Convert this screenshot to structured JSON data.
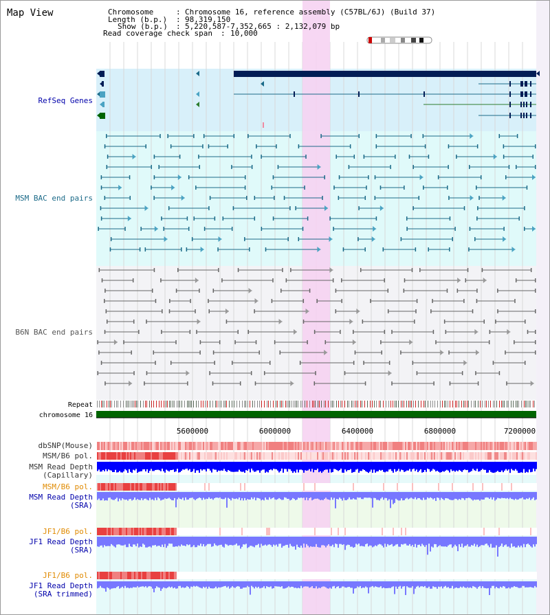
{
  "title": "Map View",
  "header": {
    "chromosome_label": "Chromosome",
    "chromosome_value": "Chromosome 16, reference assembly (C57BL/6J) (Build 37)",
    "length_label": "Length (b.p.)",
    "length_value": "98,319,150",
    "show_label": "Show (b.p.)",
    "show_value": "5,220,587-7,352,665 : 2,132,079 bp",
    "coverage_label": "Read coverage check span",
    "coverage_value": "10,000"
  },
  "tracks": {
    "refseq": "RefSeq Genes",
    "msm_bac": "MSM BAC end pairs",
    "b6n_bac": "B6N BAC end pairs",
    "repeat": "Repeat",
    "chromosome": "chromosome 16",
    "dbsnp": "dbSNP(Mouse)",
    "msm_pol": "MSM/B6 pol.",
    "msm_depth_cap_1": "MSM Read Depth",
    "msm_depth_cap_2": "(Capillary)",
    "msm_pol_sra": "MSM/B6 pol.",
    "msm_depth_sra_1": "MSM Read Depth",
    "msm_depth_sra_2": "(SRA)",
    "jf1_pol": "JF1/B6 pol.",
    "jf1_depth_1": "JF1 Read Depth",
    "jf1_depth_2": "(SRA)",
    "jf1_pol_trim": "JF1/B6 pol.",
    "jf1_trim_1": "JF1 Read Depth",
    "jf1_trim_2": "(SRA trimmed)"
  },
  "axis": {
    "ticks": [
      "5600000",
      "6000000",
      "6400000",
      "6800000",
      "7200000"
    ]
  },
  "colors": {
    "refseq_bg": "#d8f0fa",
    "msm_bg": "#e0fafa",
    "b6n_bg": "#f3f3f6",
    "highlight": "#f6d3f2",
    "gene_dark": "#001c55",
    "bac_msm": "#1b6a88",
    "bac_b6n": "#666666",
    "chromosome": "#006400",
    "label_blue": "#0000aa",
    "label_teal": "#1b6a88",
    "label_orange": "#e08a00",
    "depth_blue": "#0000ff",
    "depth_light": "#7777ff"
  }
}
